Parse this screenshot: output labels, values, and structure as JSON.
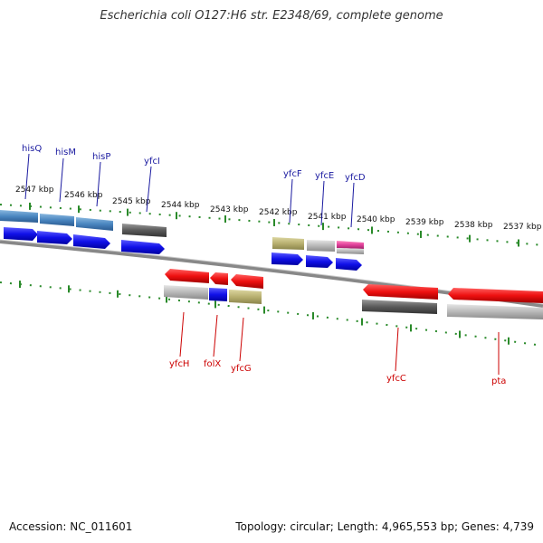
{
  "title": "Escherichia coli O127:H6 str. E2348/69, complete genome",
  "footer": {
    "accession": "Accession: NC_011601",
    "info": "Topology: circular; Length: 4,965,553 bp; Genes: 4,739"
  },
  "ticks": [
    "2547 kbp",
    "2546 kbp",
    "2545 kbp",
    "2544 kbp",
    "2543 kbp",
    "2542 kbp",
    "2541 kbp",
    "2540 kbp",
    "2539 kbp",
    "2538 kbp",
    "2537 kbp"
  ],
  "top_genes": [
    "hisQ",
    "hisM",
    "hisP",
    "yfcI",
    "yfcF",
    "yfcE",
    "yfcD"
  ],
  "bottom_genes": [
    "yfcH",
    "folX",
    "yfcG",
    "yfcC",
    "pta"
  ],
  "colors": {
    "gene_blue": "#1010e8",
    "gene_red": "#ee1010",
    "steel_blue": "#4a86c0",
    "dark_gray": "#5a5a5a",
    "light_gray": "#b8b8b8",
    "olive": "#b8b070",
    "magenta": "#e0409a",
    "tick_green": "#2a8a2a",
    "backbone": "#888888"
  }
}
